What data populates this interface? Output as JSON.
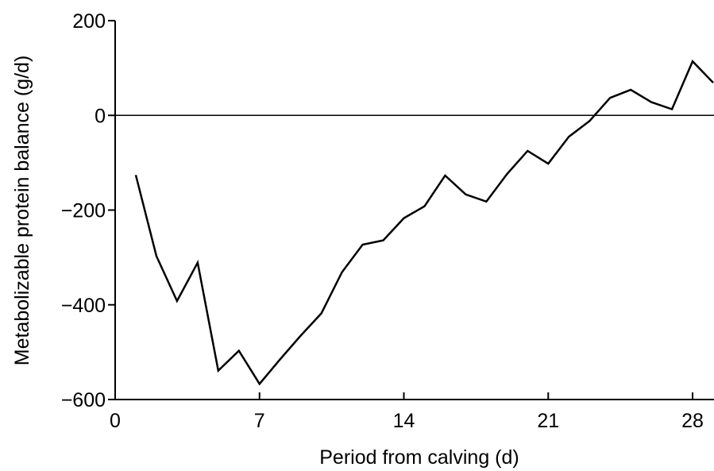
{
  "chart_data": {
    "type": "line",
    "xlabel": "Period from calving (d)",
    "ylabel": "Metabolizable protein balance (g/d)",
    "x": [
      1,
      2,
      3,
      4,
      5,
      6,
      7,
      8,
      9,
      10,
      11,
      12,
      13,
      14,
      15,
      16,
      17,
      18,
      19,
      20,
      21,
      22,
      23,
      24,
      25,
      26,
      27,
      28,
      29
    ],
    "series": [
      {
        "color": "#000000",
        "values": [
          -126,
          -297,
          -392,
          -311,
          -539,
          -497,
          -567,
          -515,
          -465,
          -418,
          -331,
          -273,
          -264,
          -217,
          -192,
          -127,
          -167,
          -182,
          -124,
          -75,
          -102,
          -45,
          -12,
          37,
          54,
          28,
          13,
          114,
          69
        ]
      }
    ],
    "xlim": [
      0,
      29
    ],
    "xticks": [
      0,
      7,
      14,
      21,
      28
    ],
    "ylim": [
      -600,
      200
    ],
    "yticks": [
      {
        "value": -600,
        "label": "−600"
      },
      {
        "value": -400,
        "label": "−400"
      },
      {
        "value": -200,
        "label": "−200"
      },
      0,
      200
    ],
    "reference_line": 0
  }
}
